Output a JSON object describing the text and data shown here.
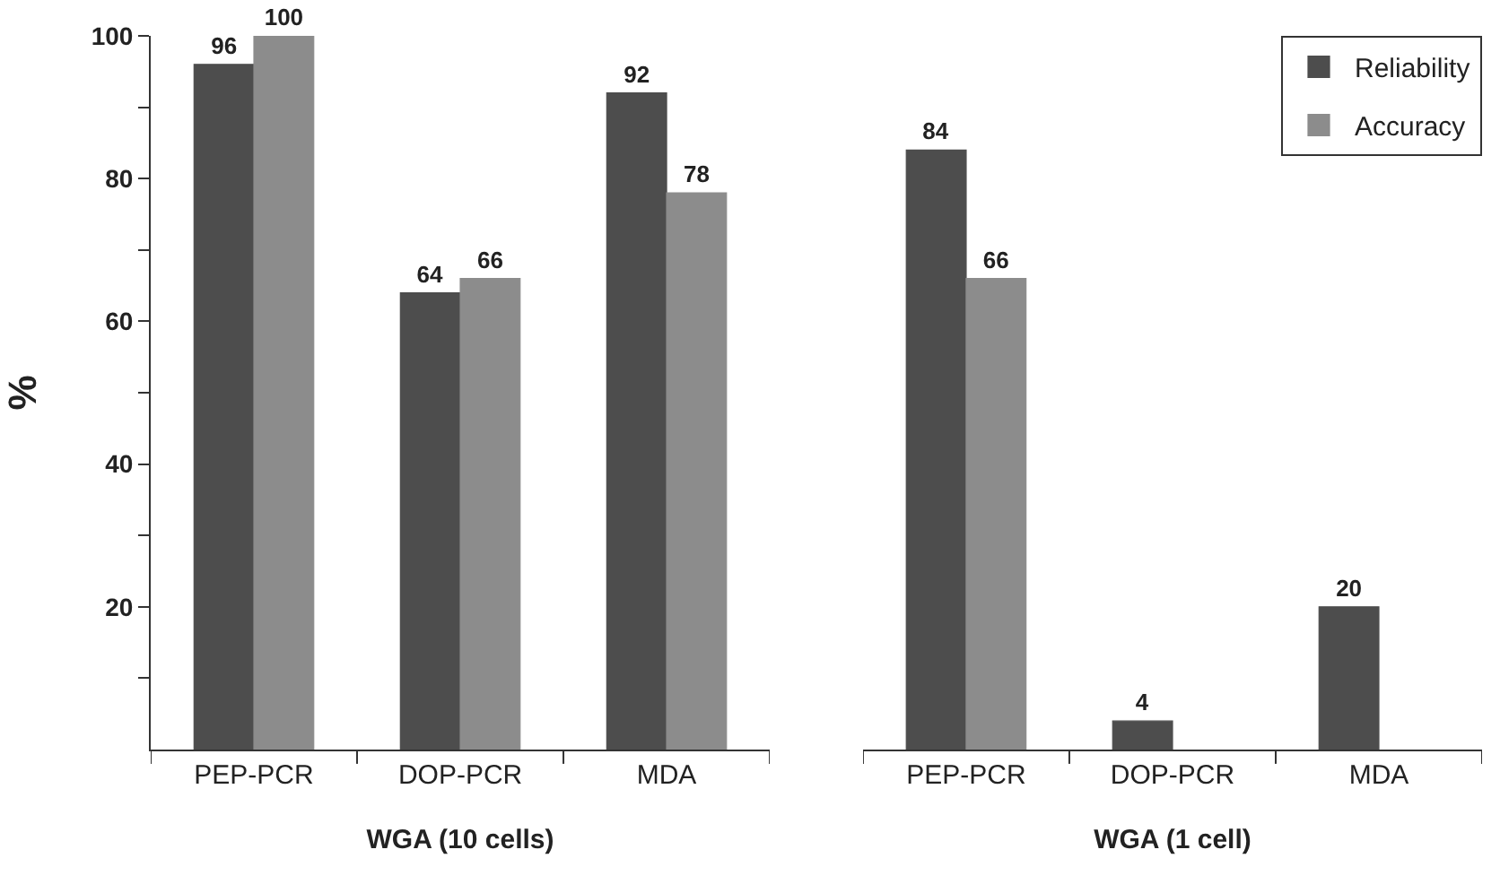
{
  "chart_data": [
    {
      "type": "bar",
      "xlabel": "WGA (10 cells)",
      "ylabel": "%",
      "categories": [
        "PEP-PCR",
        "DOP-PCR",
        "MDA"
      ],
      "series": [
        {
          "color": "#4d4d4d",
          "values": [
            96,
            64,
            92
          ]
        },
        {
          "color": "#8c8c8c",
          "values": [
            100,
            66,
            78
          ]
        }
      ],
      "ylim": [
        0,
        100
      ],
      "yticks": [
        {
          "value": 10,
          "label": null
        },
        20,
        {
          "value": 30,
          "label": null
        },
        40,
        {
          "value": 50,
          "label": null
        },
        60,
        {
          "value": 70,
          "label": null
        },
        80,
        {
          "value": 90,
          "label": null
        },
        100
      ],
      "data_labels": true
    },
    {
      "type": "bar",
      "xlabel": "WGA (1 cell)",
      "categories": [
        "PEP-PCR",
        "DOP-PCR",
        "MDA"
      ],
      "series": [
        {
          "name": "Reliability",
          "color": "#4d4d4d",
          "values": [
            84,
            4,
            20
          ]
        },
        {
          "name": "Accuracy",
          "color": "#8c8c8c",
          "values": [
            66,
            null,
            null
          ]
        }
      ],
      "ylim": [
        0,
        100
      ],
      "tick_labels": "x",
      "data_labels": true,
      "legend": "top right"
    }
  ]
}
